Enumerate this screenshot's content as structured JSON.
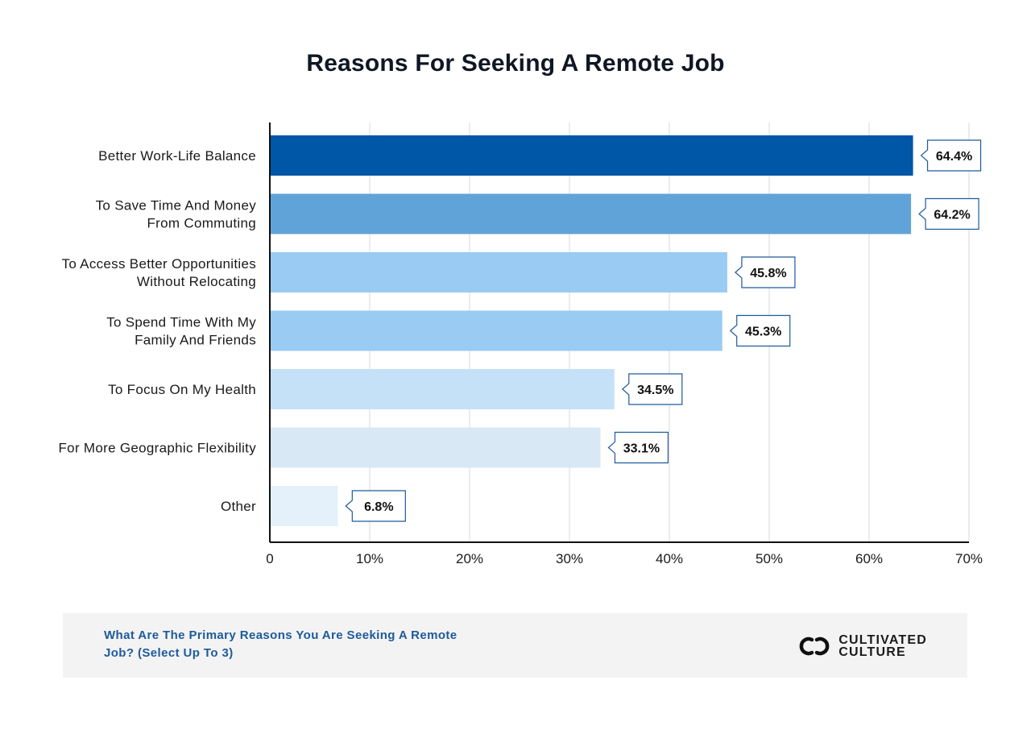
{
  "chart_data": {
    "type": "bar",
    "orientation": "horizontal",
    "title": "Reasons For Seeking A Remote Job",
    "categories": [
      [
        "Better Work-Life Balance"
      ],
      [
        "To Save Time And Money",
        "From Commuting"
      ],
      [
        "To Access Better Opportunities",
        "Without Relocating"
      ],
      [
        "To Spend Time With My",
        "Family And Friends"
      ],
      [
        "To Focus On My Health"
      ],
      [
        "For More Geographic Flexibility"
      ],
      [
        "Other"
      ]
    ],
    "values": [
      64.4,
      64.2,
      45.8,
      45.3,
      34.5,
      33.1,
      6.8
    ],
    "value_labels": [
      "64.4%",
      "64.2%",
      "45.8%",
      "45.3%",
      "34.5%",
      "33.1%",
      "6.8%"
    ],
    "bar_colors": [
      "#0056a7",
      "#60a3d9",
      "#99cbf3",
      "#99cbf3",
      "#c5e1f8",
      "#d8e8f5",
      "#e4f0fa"
    ],
    "xlim": [
      0,
      70
    ],
    "xticks": [
      0,
      10,
      20,
      30,
      40,
      50,
      60,
      70
    ],
    "xtick_labels": [
      "0",
      "10%",
      "20%",
      "30%",
      "40%",
      "50%",
      "60%",
      "70%"
    ],
    "xlabel": "",
    "ylabel": "",
    "grid": true
  },
  "footer": {
    "question": "What Are The Primary Reasons You Are Seeking A Remote Job? (Select Up To 3)",
    "brand_line1": "CULTIVATED",
    "brand_line2": "CULTURE",
    "logo_icon": "brand-logo-icon"
  },
  "colors": {
    "title": "#0f1724",
    "footer_question": "#1d5a9c",
    "callout_border": "#1d5a9c",
    "grid": "#e6e6e6"
  }
}
